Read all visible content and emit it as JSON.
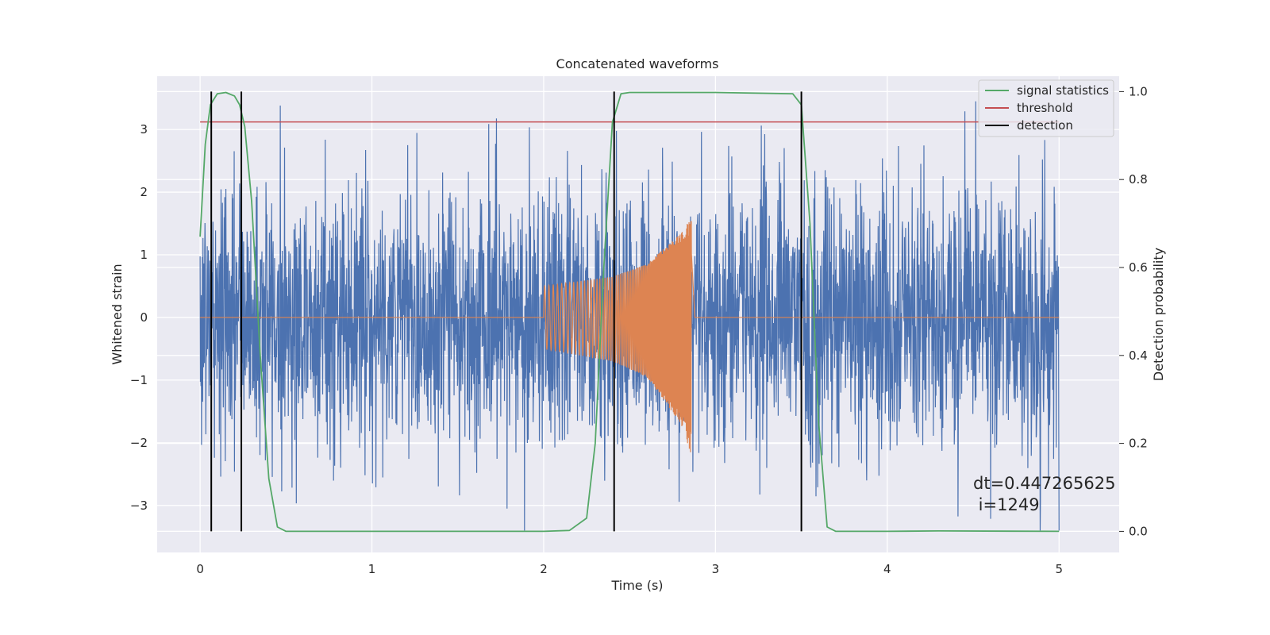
{
  "chart_data": {
    "type": "line",
    "title": "Concatenated waveforms",
    "xlabel": "Time (s)",
    "ylabel": "Whitened strain",
    "y2label": "Detection probability",
    "xlim": [
      -0.25,
      5.35
    ],
    "ylim": [
      -3.75,
      3.85
    ],
    "y2lim": [
      -0.048,
      1.035
    ],
    "xticks": [
      0,
      1,
      2,
      3,
      4,
      5
    ],
    "yticks": [
      -3,
      -2,
      -1,
      0,
      1,
      2,
      3
    ],
    "y2ticks": [
      0.0,
      0.2,
      0.4,
      0.6,
      0.8,
      1.0
    ],
    "xtick_labels": [
      "0",
      "1",
      "2",
      "3",
      "4",
      "5"
    ],
    "ytick_labels": [
      "−3",
      "−2",
      "−1",
      "0",
      "1",
      "2",
      "3"
    ],
    "y2tick_labels": [
      "0.0",
      "0.2",
      "0.4",
      "0.6",
      "0.8",
      "1.0"
    ],
    "grid": true,
    "legend_position": "top-right",
    "legend": [
      "signal statistics",
      "threshold",
      "detection"
    ],
    "colors": {
      "noise": "#4c72b0",
      "waveform": "#dd8452",
      "signal_statistics": "#55a868",
      "threshold": "#c44e52",
      "detection": "#000000",
      "background": "#eaeaf2",
      "grid": "#ffffff"
    },
    "series": [
      {
        "name": "noise",
        "axis": "left",
        "description": "whitened noisy strain, roughly Gaussian with amplitude ~1, spanning t=0 to 5 s",
        "x_range": [
          0,
          5
        ],
        "y_range": [
          -3.4,
          3.45
        ]
      },
      {
        "name": "waveform",
        "axis": "left",
        "description": "chirp injection from t=2.0 to t=2.86 s, envelope growing from 0.5 to about 1.6 / -2.2, zero elsewhere",
        "x_range": [
          2.0,
          2.86
        ],
        "envelope": {
          "x": [
            2.0,
            2.4,
            2.6,
            2.8,
            2.86
          ],
          "upper": [
            0.5,
            0.65,
            0.85,
            1.35,
            1.6
          ],
          "lower": [
            -0.5,
            -0.7,
            -0.95,
            -1.7,
            -2.2
          ]
        }
      },
      {
        "name": "signal statistics",
        "axis": "right",
        "x": [
          0.0,
          0.03,
          0.06,
          0.1,
          0.15,
          0.2,
          0.23,
          0.26,
          0.3,
          0.35,
          0.4,
          0.45,
          0.5,
          1.0,
          2.0,
          2.15,
          2.25,
          2.3,
          2.35,
          2.4,
          2.45,
          2.5,
          3.0,
          3.45,
          3.5,
          3.55,
          3.6,
          3.65,
          3.7,
          4.0,
          4.3,
          5.0
        ],
        "values": [
          0.67,
          0.88,
          0.97,
          0.995,
          0.998,
          0.99,
          0.97,
          0.92,
          0.75,
          0.4,
          0.12,
          0.01,
          0.0,
          0.0,
          0.0,
          0.002,
          0.03,
          0.2,
          0.6,
          0.93,
          0.995,
          0.998,
          0.998,
          0.995,
          0.97,
          0.7,
          0.25,
          0.01,
          0.0,
          0.0,
          0.001,
          0.0
        ]
      },
      {
        "name": "threshold",
        "axis": "left",
        "x": [
          0,
          5
        ],
        "values": [
          3.12,
          3.12
        ]
      },
      {
        "name": "detection",
        "type": "vlines",
        "x": [
          0.065,
          0.24,
          2.41,
          3.5
        ]
      }
    ],
    "annotation": {
      "line1": "dt=0.447265625",
      "line2": " i=1249"
    }
  }
}
